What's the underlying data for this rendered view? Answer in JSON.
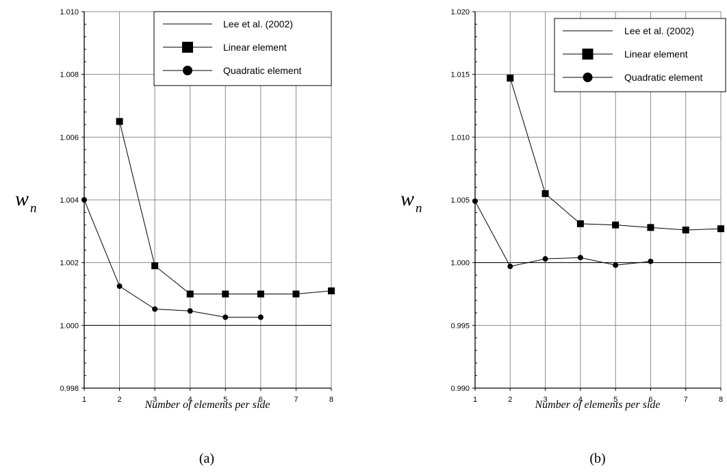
{
  "chart_data": [
    {
      "type": "line",
      "caption": "(a)",
      "xlabel": "Number of elements per side",
      "ylabel_main": "w",
      "ylabel_sub": "n",
      "xlim": [
        1,
        8
      ],
      "ylim": [
        0.998,
        1.01
      ],
      "xticks": [
        1,
        2,
        3,
        4,
        5,
        6,
        7,
        8
      ],
      "yticks": [
        "0.998",
        "1.000",
        "1.002",
        "1.004",
        "1.006",
        "1.008",
        "1.010"
      ],
      "grid": true,
      "legend_position": "top-right",
      "series": [
        {
          "name": "Lee et al. (2002)",
          "marker": "none",
          "x": [
            1,
            8
          ],
          "y": [
            1.0,
            1.0
          ]
        },
        {
          "name": "Linear element",
          "marker": "square",
          "x": [
            2,
            3,
            4,
            5,
            6,
            7,
            8
          ],
          "y": [
            1.0065,
            1.0019,
            1.001,
            1.001,
            1.001,
            1.001,
            1.0011
          ]
        },
        {
          "name": "Quadratic element",
          "marker": "circle",
          "x": [
            1,
            2,
            3,
            4,
            5,
            6
          ],
          "y": [
            1.004,
            1.00125,
            1.00052,
            1.00046,
            1.00026,
            1.00026
          ]
        }
      ]
    },
    {
      "type": "line",
      "caption": "(b)",
      "xlabel": "Number of elements per side",
      "ylabel_main": "w",
      "ylabel_sub": "n",
      "xlim": [
        1,
        8
      ],
      "ylim": [
        0.99,
        1.02
      ],
      "xticks": [
        1,
        2,
        3,
        4,
        5,
        6,
        7,
        8
      ],
      "yticks": [
        "0.990",
        "0.995",
        "1.000",
        "1.005",
        "1.010",
        "1.015",
        "1.020"
      ],
      "grid": true,
      "legend_position": "top-right",
      "series": [
        {
          "name": "Lee et al. (2002)",
          "marker": "none",
          "x": [
            1,
            8
          ],
          "y": [
            1.0,
            1.0
          ]
        },
        {
          "name": "Linear element",
          "marker": "square",
          "x": [
            2,
            3,
            4,
            5,
            6,
            7,
            8
          ],
          "y": [
            1.0147,
            1.0055,
            1.0031,
            1.003,
            1.0028,
            1.0026,
            1.0027
          ]
        },
        {
          "name": "Quadratic element",
          "marker": "circle",
          "x": [
            1,
            2,
            3,
            4,
            5,
            6
          ],
          "y": [
            1.0049,
            0.9997,
            1.0003,
            1.0004,
            0.9998,
            1.0001
          ]
        }
      ]
    }
  ]
}
